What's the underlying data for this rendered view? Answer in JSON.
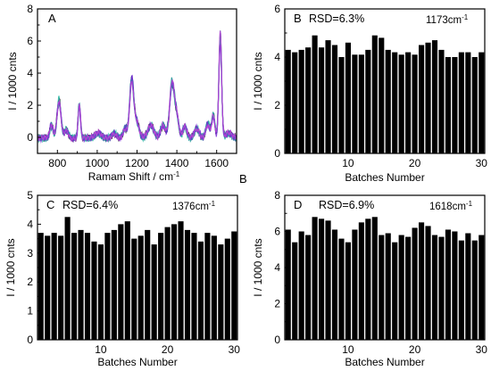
{
  "chart_data": [
    {
      "panel": "A",
      "type": "line",
      "xlabel": "Ramam Shift / cm",
      "xlabel_sup": "-1",
      "ylabel": "I / 1000 cnts",
      "xlim": [
        700,
        1700
      ],
      "ylim": [
        -1,
        8
      ],
      "xticks": [
        800,
        1000,
        1200,
        1400,
        1600
      ],
      "yticks": [
        0,
        2,
        4,
        6,
        8
      ],
      "peaks": [
        {
          "x": 770,
          "y": 0.8,
          "w": 8
        },
        {
          "x": 808,
          "y": 2.3,
          "w": 10
        },
        {
          "x": 845,
          "y": 0.5,
          "w": 10
        },
        {
          "x": 910,
          "y": 2.1,
          "w": 6
        },
        {
          "x": 1005,
          "y": 0.3,
          "w": 15
        },
        {
          "x": 1085,
          "y": 0.3,
          "w": 12
        },
        {
          "x": 1140,
          "y": 0.6,
          "w": 10
        },
        {
          "x": 1173,
          "y": 3.6,
          "w": 10
        },
        {
          "x": 1198,
          "y": 1.0,
          "w": 12
        },
        {
          "x": 1270,
          "y": 0.8,
          "w": 15
        },
        {
          "x": 1330,
          "y": 0.8,
          "w": 12
        },
        {
          "x": 1376,
          "y": 3.4,
          "w": 12
        },
        {
          "x": 1400,
          "y": 1.2,
          "w": 10
        },
        {
          "x": 1440,
          "y": 0.7,
          "w": 10
        },
        {
          "x": 1500,
          "y": 0.6,
          "w": 12
        },
        {
          "x": 1555,
          "y": 0.9,
          "w": 10
        },
        {
          "x": 1583,
          "y": 1.4,
          "w": 8
        },
        {
          "x": 1618,
          "y": 6.3,
          "w": 7
        },
        {
          "x": 1660,
          "y": 0.3,
          "w": 15
        }
      ],
      "series_colors": [
        "#000000",
        "#1e3a9a",
        "#0f8f8f",
        "#22b5a0",
        "#7a2ad6",
        "#c040d8"
      ]
    },
    {
      "panel": "B",
      "type": "bar",
      "rsd": "RSD=6.3%",
      "wavenumber": "1173cm",
      "wavenumber_sup": "-1",
      "xlabel": "Batches Number",
      "ylabel": "I / 1000 cnts",
      "ylim": [
        0,
        6
      ],
      "yticks": [
        0,
        2,
        4,
        6
      ],
      "xticks": [
        10,
        20,
        30
      ],
      "categories": [
        1,
        2,
        3,
        4,
        5,
        6,
        7,
        8,
        9,
        10,
        11,
        12,
        13,
        14,
        15,
        16,
        17,
        18,
        19,
        20,
        21,
        22,
        23,
        24,
        25,
        26,
        27,
        28,
        29,
        30
      ],
      "values": [
        4.3,
        4.2,
        4.3,
        4.4,
        4.9,
        4.4,
        4.7,
        4.5,
        4.0,
        4.6,
        4.1,
        4.1,
        4.3,
        4.9,
        4.8,
        4.3,
        4.2,
        4.1,
        4.2,
        4.1,
        4.5,
        4.6,
        4.7,
        4.3,
        4.0,
        4.0,
        4.2,
        4.2,
        4.0,
        4.2
      ]
    },
    {
      "panel": "C",
      "type": "bar",
      "rsd": "RSD=6.4%",
      "wavenumber": "1376cm",
      "wavenumber_sup": "-1",
      "xlabel": "Batches Number",
      "ylabel": "I / 1000 cnts",
      "ylim": [
        0,
        5
      ],
      "yticks": [
        0,
        1,
        2,
        3,
        4,
        5
      ],
      "xticks": [
        10,
        20,
        30
      ],
      "categories": [
        1,
        2,
        3,
        4,
        5,
        6,
        7,
        8,
        9,
        10,
        11,
        12,
        13,
        14,
        15,
        16,
        17,
        18,
        19,
        20,
        21,
        22,
        23,
        24,
        25,
        26,
        27,
        28,
        29,
        30
      ],
      "values": [
        3.7,
        3.6,
        3.7,
        3.6,
        4.25,
        3.7,
        3.8,
        3.7,
        3.4,
        3.3,
        3.7,
        3.8,
        4.0,
        4.1,
        3.5,
        3.6,
        3.8,
        3.3,
        3.7,
        3.9,
        4.0,
        4.1,
        3.8,
        3.7,
        3.4,
        3.7,
        3.6,
        3.3,
        3.5,
        3.75
      ]
    },
    {
      "panel": "D",
      "type": "bar",
      "rsd": "RSD=6.9%",
      "wavenumber": "1618cm",
      "wavenumber_sup": "-1",
      "xlabel": "Batches Number",
      "ylabel": "I / 1000 cnts",
      "ylim": [
        0,
        8
      ],
      "yticks": [
        0,
        2,
        4,
        6,
        8
      ],
      "xticks": [
        10,
        20,
        30
      ],
      "categories": [
        1,
        2,
        3,
        4,
        5,
        6,
        7,
        8,
        9,
        10,
        11,
        12,
        13,
        14,
        15,
        16,
        17,
        18,
        19,
        20,
        21,
        22,
        23,
        24,
        25,
        26,
        27,
        28,
        29,
        30
      ],
      "values": [
        6.1,
        5.4,
        6.0,
        5.8,
        6.8,
        6.7,
        6.6,
        6.1,
        5.6,
        5.4,
        6.1,
        6.5,
        6.7,
        6.8,
        5.8,
        5.9,
        5.4,
        5.8,
        5.7,
        6.2,
        6.5,
        6.3,
        5.8,
        5.7,
        6.1,
        6.0,
        5.5,
        5.9,
        5.5,
        5.8
      ]
    }
  ],
  "stray_label": "B"
}
